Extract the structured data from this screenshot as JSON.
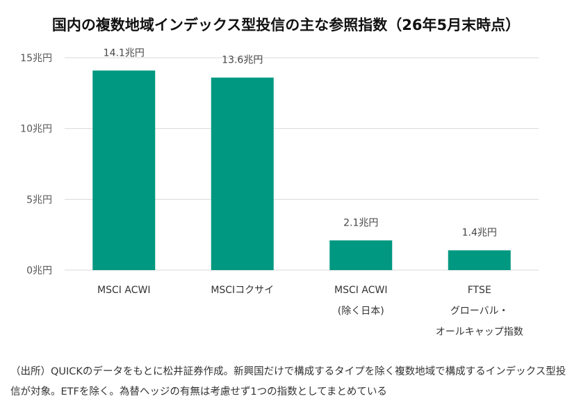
{
  "chart_data": {
    "type": "bar",
    "title": "国内の複数地域インデックス型投信の主な参照指数（26年5月末時点）",
    "categories": [
      [
        "MSCI ACWI"
      ],
      [
        "MSCIコクサイ"
      ],
      [
        "MSCI ACWI",
        "(除く日本)"
      ],
      [
        "FTSE",
        "グローバル・",
        "オールキャップ指数"
      ]
    ],
    "values": [
      14.1,
      13.6,
      2.1,
      1.4
    ],
    "value_labels": [
      "14.1兆円",
      "13.6兆円",
      "2.1兆円",
      "1.4兆円"
    ],
    "yticks": [
      {
        "value": 0,
        "label": "0兆円"
      },
      {
        "value": 5,
        "label": "5兆円"
      },
      {
        "value": 10,
        "label": "10兆円"
      },
      {
        "value": 15,
        "label": "15兆円"
      }
    ],
    "ylim": [
      0,
      15
    ],
    "xlabel": "",
    "ylabel": "",
    "grid": true,
    "bar_color": "#009880",
    "grid_color": "#d9d9d9"
  },
  "source_note": "（出所）QUICKのデータをもとに松井証券作成。新興国だけで構成するタイプを除く複数地域で構成するインデックス型投信が対象。ETFを除く。為替ヘッジの有無は考慮せず1つの指数としてまとめている"
}
